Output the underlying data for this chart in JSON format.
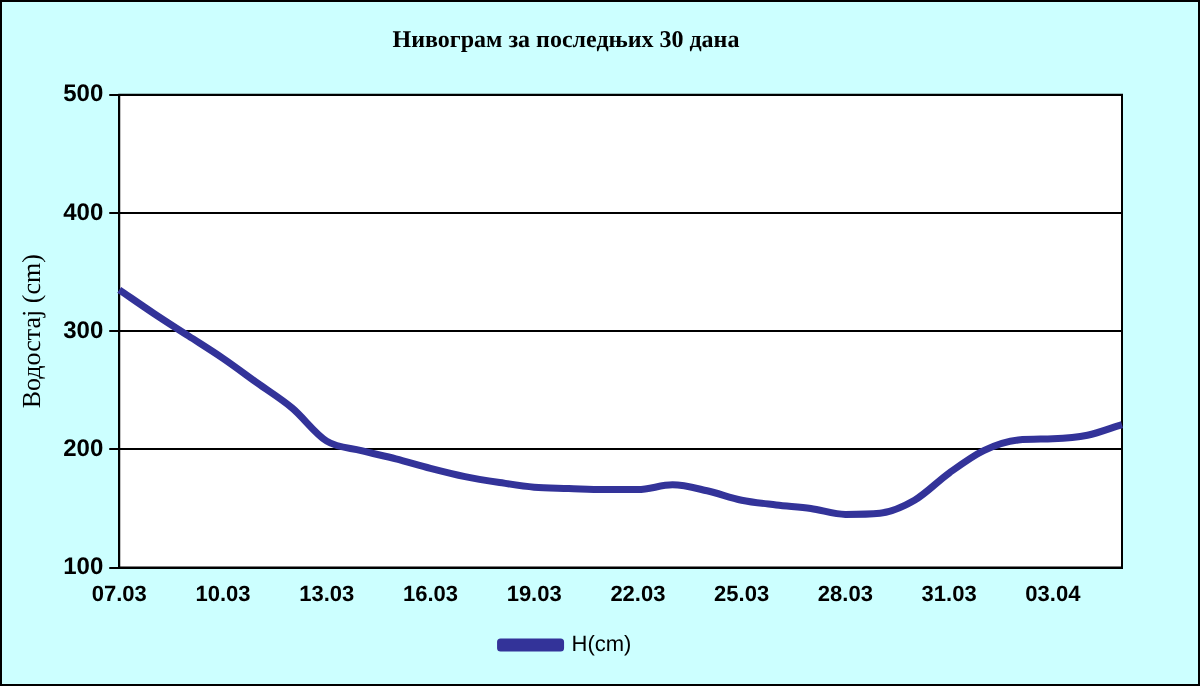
{
  "chart_data": {
    "type": "line",
    "title": "Нивограм за последњих 30 дана",
    "ylabel": "Водостај (cm)",
    "categories": [
      "07.03",
      null,
      null,
      "10.03",
      null,
      null,
      "13.03",
      null,
      null,
      "16.03",
      null,
      null,
      "19.03",
      null,
      null,
      "22.03",
      null,
      null,
      "25.03",
      null,
      null,
      "28.03",
      null,
      null,
      "31.03",
      null,
      null,
      "03.04",
      null,
      null
    ],
    "series": [
      {
        "name": "H(cm)",
        "color": "#333399",
        "values": [
          335,
          315,
          296,
          277,
          256,
          235,
          207,
          199,
          192,
          184,
          177,
          172,
          168,
          167,
          166,
          166,
          170,
          165,
          157,
          153,
          150,
          145,
          146,
          157,
          180,
          199,
          208,
          209,
          212,
          221
        ]
      }
    ],
    "ylim": [
      100,
      500
    ],
    "yticks": [
      100,
      200,
      300,
      400,
      500
    ],
    "grid": "y",
    "legend": "bottom",
    "marker": "none",
    "line_style": "solid"
  }
}
